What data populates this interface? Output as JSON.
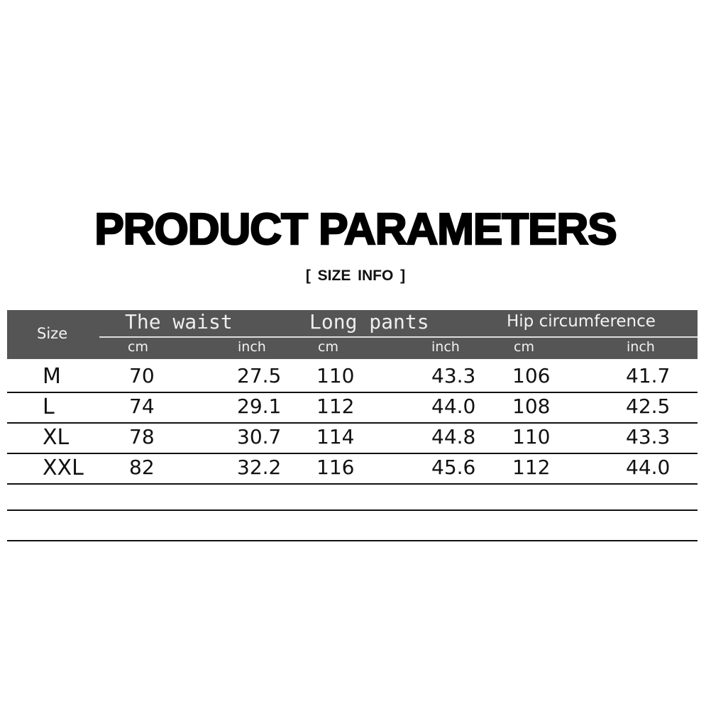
{
  "title": "PRODUCT PARAMETERS",
  "subtitle": "[ SIZE  INFO ]",
  "table": {
    "size_header": "Size",
    "groups": [
      "The waist",
      "Long pants",
      "Hip circumference"
    ],
    "units": [
      "cm",
      "inch",
      "cm",
      "inch",
      "cm",
      "inch"
    ],
    "rows": [
      {
        "size": "M",
        "values": [
          "70",
          "27.5",
          "110",
          "43.3",
          "106",
          "41.7"
        ]
      },
      {
        "size": "L",
        "values": [
          "74",
          "29.1",
          "112",
          "44.0",
          "108",
          "42.5"
        ]
      },
      {
        "size": "XL",
        "values": [
          "78",
          "30.7",
          "114",
          "44.8",
          "110",
          "43.3"
        ]
      },
      {
        "size": "XXL",
        "values": [
          "82",
          "32.2",
          "116",
          "45.6",
          "112",
          "44.0"
        ]
      }
    ]
  },
  "colors": {
    "header_bg": "#555555",
    "header_text": "#f2f2f2"
  }
}
